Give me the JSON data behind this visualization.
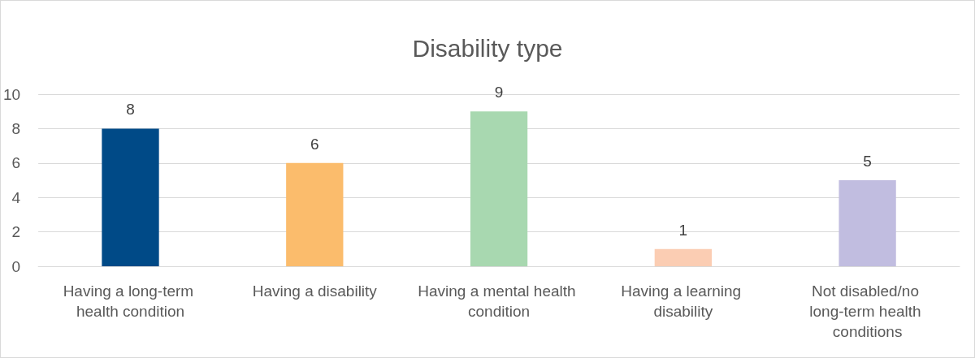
{
  "chart_data": {
    "type": "bar",
    "title": "Disability type",
    "categories": [
      "Having a long-term health condition",
      "Having a disability",
      "Having a mental health condition",
      "Having a learning disability",
      "Not disabled/no long-term health conditions"
    ],
    "values": [
      8,
      6,
      9,
      1,
      5
    ],
    "colors": [
      "#004a87",
      "#fbbc6c",
      "#a8d8b0",
      "#fbcdb3",
      "#c1bde0"
    ],
    "ylim": [
      0,
      10
    ],
    "yticks": [
      0,
      2,
      4,
      6,
      8,
      10
    ],
    "grid": "y",
    "data_labels": true
  }
}
